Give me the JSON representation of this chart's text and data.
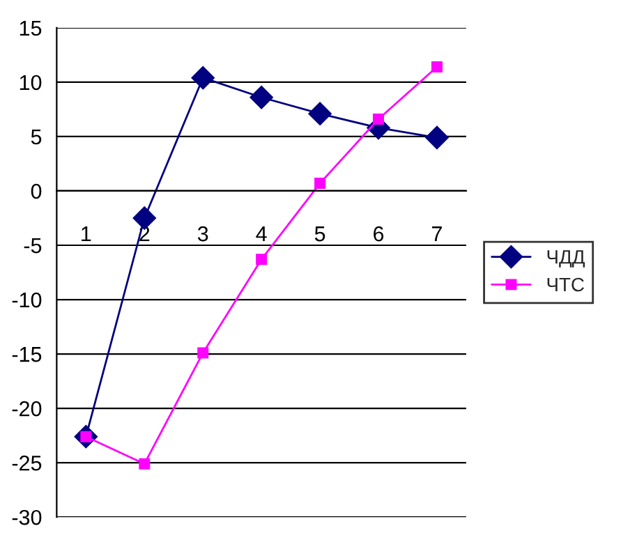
{
  "chart_data": {
    "type": "line",
    "categories": [
      "1",
      "2",
      "3",
      "4",
      "5",
      "6",
      "7"
    ],
    "series": [
      {
        "name": "ЧДД",
        "color": "#000080",
        "marker": "diamond",
        "values": [
          -22.6,
          -2.5,
          10.4,
          8.6,
          7.1,
          5.8,
          4.9
        ]
      },
      {
        "name": "ЧТС",
        "color": "#ff00ff",
        "marker": "square",
        "values": [
          -22.6,
          -25.1,
          -14.9,
          -6.3,
          0.7,
          6.6,
          11.4
        ]
      }
    ],
    "ylim": [
      -30,
      15
    ],
    "yticks": [
      -30,
      -25,
      -20,
      -15,
      -10,
      -5,
      0,
      5,
      10,
      15
    ],
    "grid": "y",
    "legend": "right",
    "line_style": "solid"
  }
}
